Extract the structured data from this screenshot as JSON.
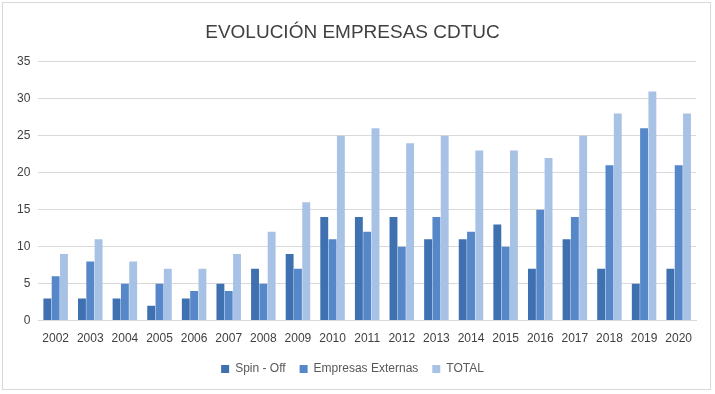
{
  "chart_data": {
    "type": "bar",
    "title": "EVOLUCIÓN EMPRESAS CDTUC",
    "categories": [
      "2002",
      "2003",
      "2004",
      "2005",
      "2006",
      "2007",
      "2008",
      "2009",
      "2010",
      "2011",
      "2012",
      "2013",
      "2014",
      "2015",
      "2016",
      "2017",
      "2018",
      "2019",
      "2020"
    ],
    "series": [
      {
        "name": "Spin - Off",
        "color": "#3f70b0",
        "values": [
          3,
          3,
          3,
          2,
          3,
          5,
          7,
          9,
          14,
          14,
          14,
          11,
          11,
          13,
          7,
          11,
          7,
          5,
          7
        ]
      },
      {
        "name": "Empresas Externas",
        "color": "#5587c9",
        "values": [
          6,
          8,
          5,
          5,
          4,
          4,
          5,
          7,
          11,
          12,
          10,
          14,
          12,
          10,
          15,
          14,
          21,
          26,
          21
        ]
      },
      {
        "name": "TOTAL",
        "color": "#a8c2e6",
        "values": [
          9,
          11,
          8,
          7,
          7,
          9,
          12,
          16,
          25,
          26,
          24,
          25,
          23,
          23,
          22,
          25,
          28,
          31,
          28
        ]
      }
    ],
    "ylim": [
      0,
      35
    ],
    "yticks": [
      0,
      5,
      10,
      15,
      20,
      25,
      30,
      35
    ],
    "grid": true,
    "legend": "bottom"
  }
}
